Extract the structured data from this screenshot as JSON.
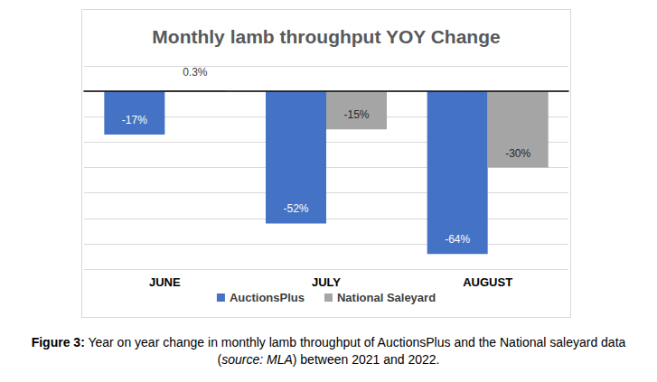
{
  "chart_data": {
    "type": "bar",
    "title": "Monthly lamb throughput YOY Change",
    "categories": [
      "JUNE",
      "JULY",
      "AUGUST"
    ],
    "series": [
      {
        "name": "AuctionsPlus",
        "color": "#4472c4",
        "values": [
          -17,
          -52,
          -64
        ],
        "value_labels": [
          "-17%",
          "-52%",
          "-64%"
        ]
      },
      {
        "name": "National Saleyard",
        "color": "#a5a5a5",
        "values": [
          0.3,
          -15,
          -30
        ],
        "value_labels": [
          "0.3%",
          "-15%",
          "-30%"
        ]
      }
    ],
    "ylim": [
      -70,
      10
    ],
    "yticks": [
      -70,
      -60,
      -50,
      -40,
      -30,
      -20,
      -10,
      0,
      10
    ],
    "grid": true,
    "legend": "bottom",
    "data_labels": true,
    "tick_labels": "x"
  },
  "caption": [
    {
      "text": "Figure 3:",
      "style": "bold"
    },
    {
      "text": " Year on year change in monthly lamb throughput of AuctionsPlus and the National saleyard data ("
    },
    {
      "text": "source: MLA",
      "style": "italic"
    },
    {
      "text": ") between 2021 and 2022."
    }
  ]
}
